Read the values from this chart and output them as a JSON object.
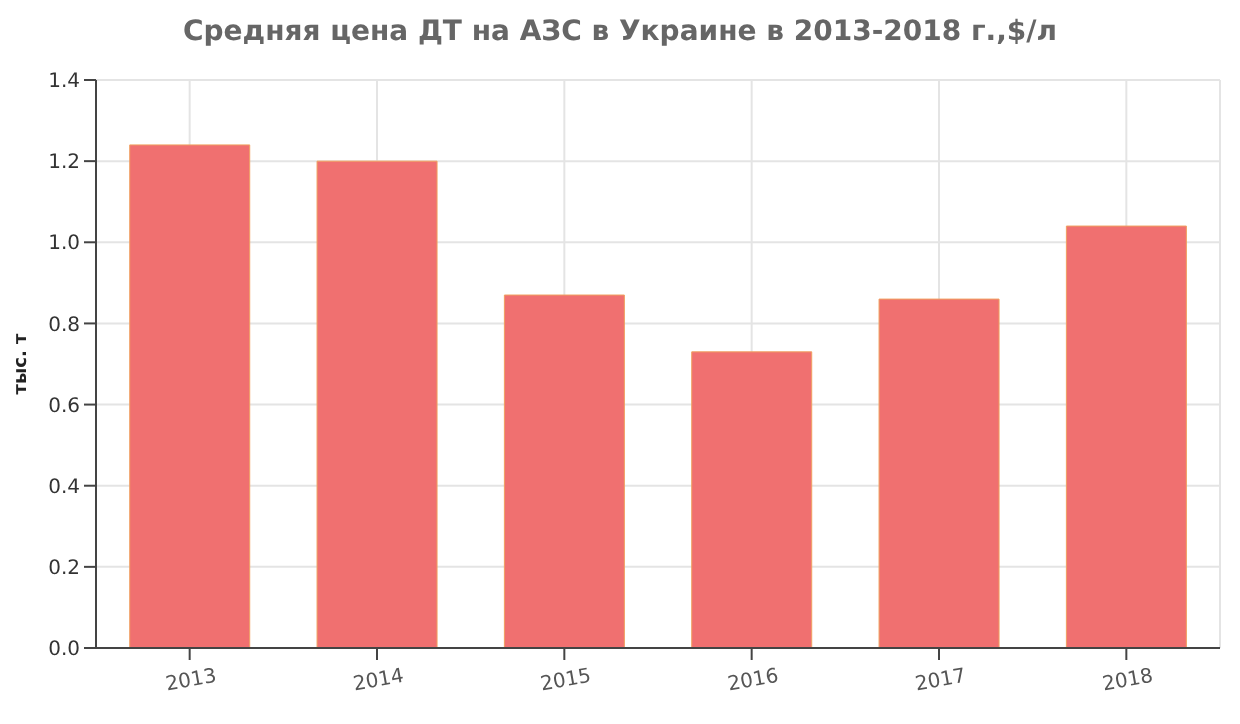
{
  "chart_data": {
    "type": "bar",
    "title": "Средняя цена ДТ на АЗС в Украине в 2013-2018 г.,$/л",
    "ylabel": "тыс. т",
    "categories": [
      "2013",
      "2014",
      "2015",
      "2016",
      "2017",
      "2018"
    ],
    "values": [
      1.24,
      1.2,
      0.87,
      0.73,
      0.86,
      1.04
    ],
    "color": "#f07070",
    "ylim": [
      0,
      1.4
    ],
    "yticks": [
      {
        "value": 0,
        "label": "0.0"
      },
      0.2,
      0.4,
      0.6,
      0.8,
      {
        "value": 1,
        "label": "1.0"
      },
      1.2,
      1.4
    ],
    "grid": true
  }
}
